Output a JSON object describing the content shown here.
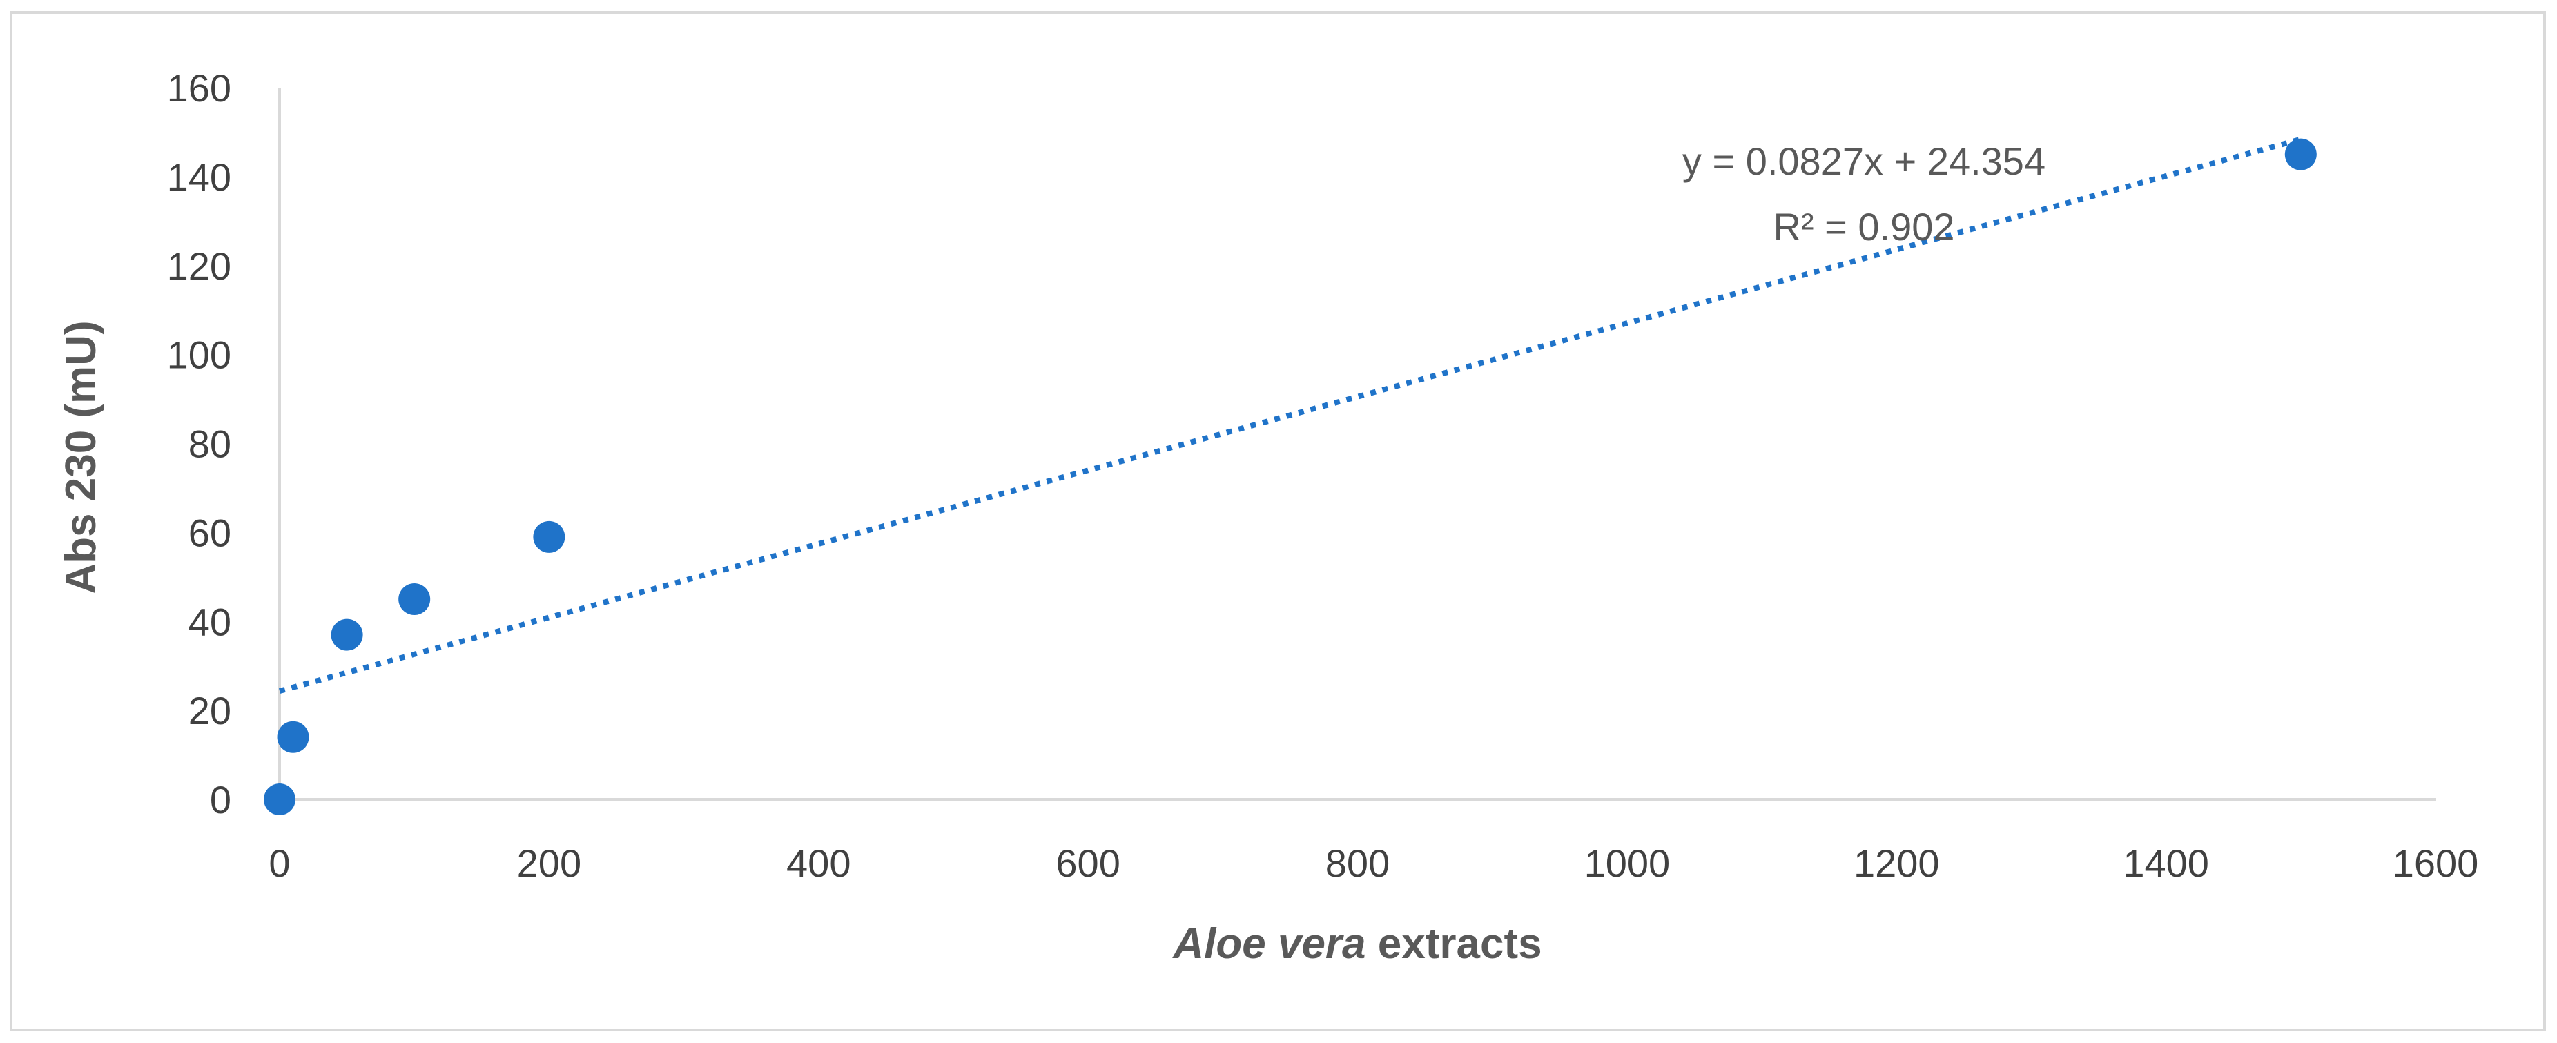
{
  "chart_data": {
    "type": "scatter",
    "title": "",
    "xlabel_italic": "Aloe vera",
    "xlabel_rest": " extracts",
    "ylabel": "Abs 230 (mU)",
    "xlim": [
      0,
      1600
    ],
    "ylim": [
      0,
      160
    ],
    "x_ticks": [
      0,
      200,
      400,
      600,
      800,
      1000,
      1200,
      1400,
      1600
    ],
    "y_ticks": [
      0,
      20,
      40,
      60,
      80,
      100,
      120,
      140,
      160
    ],
    "grid": false,
    "legend": "none",
    "series": [
      {
        "points": [
          {
            "x": 0,
            "y": 0
          },
          {
            "x": 10,
            "y": 14
          },
          {
            "x": 50,
            "y": 37
          },
          {
            "x": 100,
            "y": 45
          },
          {
            "x": 200,
            "y": 59
          },
          {
            "x": 1500,
            "y": 145
          }
        ],
        "color": "#1f73c9"
      }
    ],
    "trendline": {
      "type": "linear",
      "slope": 0.0827,
      "intercept": 24.354,
      "x_range": [
        0,
        1500
      ],
      "style": "dotted",
      "color": "#1f73c9",
      "equation_text": "y = 0.0827x + 24.354",
      "r2_text": "R² = 0.902"
    }
  }
}
